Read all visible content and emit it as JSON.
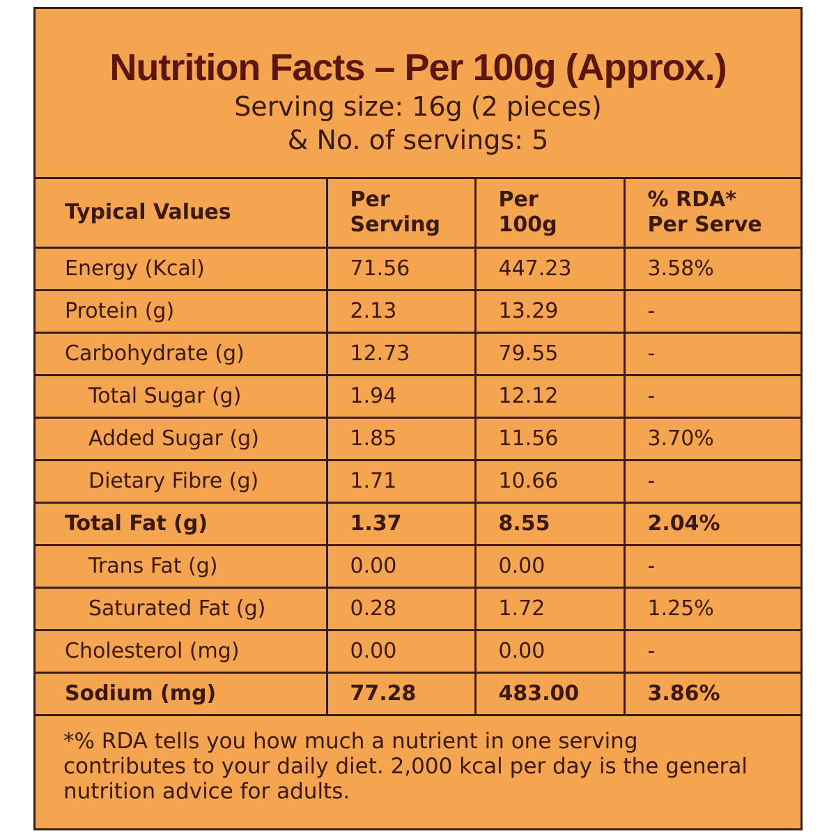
{
  "header": {
    "title": "Nutrition Facts – Per 100g (Approx.)",
    "line1": "Serving size: 16g (2 pieces)",
    "line2": "& No. of servings: 5"
  },
  "table": {
    "columns": [
      "Typical Values",
      "Per\nServing",
      "Per\n100g",
      "% RDA*\nPer Serve"
    ],
    "rows": [
      {
        "label": "Energy (Kcal)",
        "per_serving": "71.56",
        "per_100g": "447.23",
        "rda": "3.58%",
        "indent": false,
        "bold": false
      },
      {
        "label": "Protein (g)",
        "per_serving": "2.13",
        "per_100g": "13.29",
        "rda": "-",
        "indent": false,
        "bold": false
      },
      {
        "label": "Carbohydrate (g)",
        "per_serving": "12.73",
        "per_100g": "79.55",
        "rda": "-",
        "indent": false,
        "bold": false
      },
      {
        "label": "Total Sugar (g)",
        "per_serving": "1.94",
        "per_100g": "12.12",
        "rda": "-",
        "indent": true,
        "bold": false
      },
      {
        "label": "Added Sugar (g)",
        "per_serving": "1.85",
        "per_100g": "11.56",
        "rda": "3.70%",
        "indent": true,
        "bold": false
      },
      {
        "label": "Dietary Fibre (g)",
        "per_serving": "1.71",
        "per_100g": "10.66",
        "rda": "-",
        "indent": true,
        "bold": false
      },
      {
        "label": "Total Fat (g)",
        "per_serving": "1.37",
        "per_100g": "8.55",
        "rda": "2.04%",
        "indent": false,
        "bold": true
      },
      {
        "label": "Trans Fat (g)",
        "per_serving": "0.00",
        "per_100g": "0.00",
        "rda": "-",
        "indent": true,
        "bold": false
      },
      {
        "label": "Saturated Fat (g)",
        "per_serving": "0.28",
        "per_100g": "1.72",
        "rda": "1.25%",
        "indent": true,
        "bold": false
      },
      {
        "label": "Cholesterol (mg)",
        "per_serving": "0.00",
        "per_100g": "0.00",
        "rda": "-",
        "indent": false,
        "bold": false
      },
      {
        "label": "Sodium (mg)",
        "per_serving": "77.28",
        "per_100g": "483.00",
        "rda": "3.86%",
        "indent": false,
        "bold": true
      }
    ]
  },
  "footnote": {
    "line1": "*% RDA tells you how much a nutrient in one serving",
    "line2": "contributes to your daily diet. 2,000 kcal per day is the general",
    "line3": "nutrition advice for adults."
  },
  "colors": {
    "background": "#f5a44f",
    "border": "#3a1f14",
    "title": "#5a1710",
    "text": "#3a1a10"
  }
}
